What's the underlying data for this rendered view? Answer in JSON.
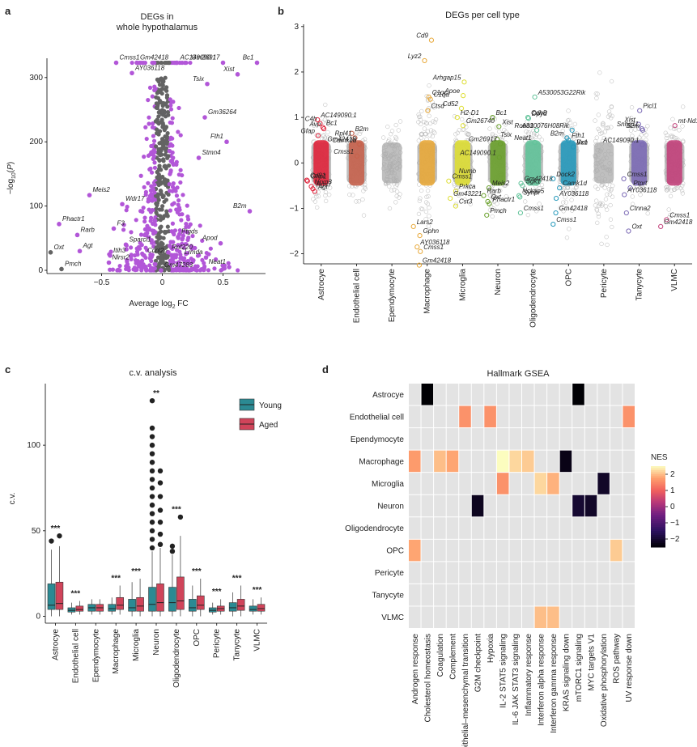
{
  "colors": {
    "volcano_sig": "#b256d8",
    "volcano_ns": "#636363",
    "background_cloud": "#b8b8b8",
    "young": "#2b8a93",
    "aged": "#d0445a",
    "tile_empty": "#e3e3e3"
  },
  "panel_a": {
    "letter": "a",
    "chart_data": {
      "type": "scatter",
      "title": "DEGs in\nwhole hypothalamus",
      "xlabel": "Average log2 FC",
      "ylabel": "-log10(P)",
      "xlim": [
        -0.95,
        0.85
      ],
      "ylim": [
        -5,
        330
      ],
      "xticks": [
        -0.5,
        0,
        0.5
      ],
      "yticks": [
        0,
        100,
        200,
        300
      ],
      "labeled_points": [
        {
          "label": "Gm42418",
          "x": -0.21,
          "y": 323
        },
        {
          "label": "AC149090.1",
          "x": 0.12,
          "y": 323
        },
        {
          "label": "Gm26917",
          "x": 0.5,
          "y": 323
        },
        {
          "label": "Bc1",
          "x": 0.78,
          "y": 323
        },
        {
          "label": "Cmss1",
          "x": -0.38,
          "y": 323
        },
        {
          "label": "Xist",
          "x": 0.62,
          "y": 305
        },
        {
          "label": "AY036118",
          "x": -0.25,
          "y": 307
        },
        {
          "label": "Tsix",
          "x": 0.37,
          "y": 290
        },
        {
          "label": "Gm36264",
          "x": 0.35,
          "y": 238
        },
        {
          "label": "Fth1",
          "x": 0.53,
          "y": 200
        },
        {
          "label": "Stmn4",
          "x": 0.3,
          "y": 175
        },
        {
          "label": "B2m",
          "x": 0.72,
          "y": 92
        },
        {
          "label": "Meis2",
          "x": -0.6,
          "y": 117
        },
        {
          "label": "Wdr17",
          "x": -0.33,
          "y": 103
        },
        {
          "label": "Phactr1",
          "x": -0.85,
          "y": 72
        },
        {
          "label": "Rarb",
          "x": -0.7,
          "y": 55
        },
        {
          "label": "F3",
          "x": -0.4,
          "y": 65
        },
        {
          "label": "Sparcl1",
          "x": -0.3,
          "y": 40
        },
        {
          "label": "Ptgds",
          "x": 0.13,
          "y": 52
        },
        {
          "label": "Apod",
          "x": 0.48,
          "y": 42
        },
        {
          "label": "Oxt",
          "x": -0.92,
          "y": 28
        },
        {
          "label": "Agt",
          "x": -0.68,
          "y": 30
        },
        {
          "label": "Itih3",
          "x": -0.43,
          "y": 23
        },
        {
          "label": "Ccnl2",
          "x": -0.15,
          "y": 23
        },
        {
          "label": "Rnf220",
          "x": 0.05,
          "y": 28
        },
        {
          "label": "Lrmda",
          "x": 0.36,
          "y": 20
        },
        {
          "label": "Nlrsr2",
          "x": -0.44,
          "y": 12
        },
        {
          "label": "Neat1",
          "x": 0.55,
          "y": 5
        },
        {
          "label": "Gm47283",
          "x": -0.01,
          "y": 0
        },
        {
          "label": "Pmch",
          "x": -0.83,
          "y": 2
        }
      ]
    }
  },
  "panel_b": {
    "letter": "b",
    "chart_data": {
      "type": "scatter",
      "title": "DEGs per cell type",
      "ylim": [
        -2.15,
        3.05
      ],
      "yticks": [
        -2,
        -1,
        0,
        1,
        2,
        3
      ],
      "categories": [
        "Astrocye",
        "Endothelial cell",
        "Ependymocyte",
        "Macrophage",
        "Microglia",
        "Neuron",
        "Oligodendrocyte",
        "OPC",
        "Pericyte",
        "Tanycyte",
        "VLMC"
      ],
      "category_colors": [
        "#e0233b",
        "#c7624c",
        "#9a9a9a",
        "#e8a93a",
        "#dede34",
        "#6aa02c",
        "#62c39a",
        "#2699bb",
        "#9a9a9a",
        "#7b6ab5",
        "#c2407a"
      ],
      "labeled_points": [
        {
          "cat": 0,
          "label": "AC149090.1",
          "y": 0.95
        },
        {
          "cat": 0,
          "label": "C4b",
          "y": 0.87
        },
        {
          "cat": 0,
          "label": "Bc1",
          "y": 0.78
        },
        {
          "cat": 0,
          "label": "Avp",
          "y": 0.75
        },
        {
          "cat": 0,
          "label": "Gfap",
          "y": 0.6
        },
        {
          "cat": 0,
          "label": "Cd81",
          "y": -0.38
        },
        {
          "cat": 0,
          "label": "Grip1",
          "y": -0.4
        },
        {
          "cat": 0,
          "label": "Nrxn3",
          "y": -0.52
        },
        {
          "cat": 0,
          "label": "Rgs7",
          "y": -0.57
        },
        {
          "cat": 0,
          "label": "Agt",
          "y": -0.63
        },
        {
          "cat": 1,
          "label": "B2m",
          "y": 0.65
        },
        {
          "cat": 1,
          "label": "Rpl41",
          "y": 0.55
        },
        {
          "cat": 1,
          "label": "Gm42418",
          "y": 0.42
        },
        {
          "cat": 1,
          "label": "Camk1d",
          "y": 0.4
        },
        {
          "cat": 1,
          "label": "Cmss1",
          "y": 0.15
        },
        {
          "cat": 3,
          "label": "Cd9",
          "y": 2.7
        },
        {
          "cat": 3,
          "label": "Lyz2",
          "y": 2.25
        },
        {
          "cat": 3,
          "label": "C1qa",
          "y": 1.4
        },
        {
          "cat": 3,
          "label": "C1qc",
          "y": 1.45
        },
        {
          "cat": 3,
          "label": "Ctsd",
          "y": 1.15
        },
        {
          "cat": 3,
          "label": "Lars2",
          "y": -1.4
        },
        {
          "cat": 3,
          "label": "Gphn",
          "y": -1.6
        },
        {
          "cat": 3,
          "label": "AY036118",
          "y": -1.85
        },
        {
          "cat": 3,
          "label": "Cmss1",
          "y": -1.95
        },
        {
          "cat": 3,
          "label": "Gm42418",
          "y": -2.25
        },
        {
          "cat": 4,
          "label": "Arhgap15",
          "y": 1.78
        },
        {
          "cat": 4,
          "label": "Apoe",
          "y": 1.48
        },
        {
          "cat": 4,
          "label": "Cd52",
          "y": 1.2
        },
        {
          "cat": 4,
          "label": "H2-D1",
          "y": 1.0
        },
        {
          "cat": 4,
          "label": "Gm26740",
          "y": 0.82
        },
        {
          "cat": 4,
          "label": "Numb",
          "y": -0.28
        },
        {
          "cat": 4,
          "label": "Cmss1",
          "y": -0.4
        },
        {
          "cat": 4,
          "label": "Prkca",
          "y": -0.62
        },
        {
          "cat": 4,
          "label": "Gm43221",
          "y": -0.78
        },
        {
          "cat": 4,
          "label": "Cst3",
          "y": -0.95
        },
        {
          "cat": 5,
          "label": "Bc1",
          "y": 1.0
        },
        {
          "cat": 5,
          "label": "Xist",
          "y": 0.8
        },
        {
          "cat": 5,
          "label": "Tsix",
          "y": 0.52
        },
        {
          "cat": 5,
          "label": "Gm26917",
          "y": 0.42
        },
        {
          "cat": 5,
          "label": "AC149090.1",
          "y": 0.12
        },
        {
          "cat": 5,
          "label": "Meis2",
          "y": -0.55
        },
        {
          "cat": 5,
          "label": "Rarb",
          "y": -0.72
        },
        {
          "cat": 5,
          "label": "Oxt",
          "y": -0.85
        },
        {
          "cat": 5,
          "label": "Phactr1",
          "y": -0.9
        },
        {
          "cat": 5,
          "label": "Pmch",
          "y": -1.15
        },
        {
          "cat": 6,
          "label": "A530053G22Rik",
          "y": 1.45
        },
        {
          "cat": 6,
          "label": "Dpyd",
          "y": 0.98
        },
        {
          "cat": 6,
          "label": "Cdh8",
          "y": 1.0
        },
        {
          "cat": 6,
          "label": "Robo1",
          "y": 0.72
        },
        {
          "cat": 6,
          "label": "Neat1",
          "y": 0.45
        },
        {
          "cat": 6,
          "label": "Gm42418",
          "y": -0.45
        },
        {
          "cat": 6,
          "label": "Sgk1",
          "y": -0.5
        },
        {
          "cat": 6,
          "label": "Synpr",
          "y": -0.75
        },
        {
          "cat": 6,
          "label": "Nckap5",
          "y": -0.72
        },
        {
          "cat": 6,
          "label": "Cmss1",
          "y": -1.1
        },
        {
          "cat": 7,
          "label": "A330076H08Rik",
          "y": 0.72
        },
        {
          "cat": 7,
          "label": "Fth1",
          "y": 0.5
        },
        {
          "cat": 7,
          "label": "B2m",
          "y": 0.55
        },
        {
          "cat": 7,
          "label": "Vxn",
          "y": 0.35
        },
        {
          "cat": 7,
          "label": "Bc1",
          "y": 0.35
        },
        {
          "cat": 7,
          "label": "Dock2",
          "y": -0.35
        },
        {
          "cat": 7,
          "label": "Camk1d",
          "y": -0.55
        },
        {
          "cat": 7,
          "label": "AY036118",
          "y": -0.78
        },
        {
          "cat": 7,
          "label": "Gm42418",
          "y": -1.1
        },
        {
          "cat": 7,
          "label": "Cmss1",
          "y": -1.35
        },
        {
          "cat": 9,
          "label": "Picl1",
          "y": 1.15
        },
        {
          "cat": 9,
          "label": "Xist",
          "y": 0.85
        },
        {
          "cat": 9,
          "label": "Snhg11",
          "y": 0.75
        },
        {
          "cat": 9,
          "label": "B2m",
          "y": 0.72
        },
        {
          "cat": 9,
          "label": "AC149090.1",
          "y": 0.4
        },
        {
          "cat": 9,
          "label": "Cmss1",
          "y": -0.35
        },
        {
          "cat": 9,
          "label": "Ptprt",
          "y": -0.55
        },
        {
          "cat": 9,
          "label": "AY036118",
          "y": -0.7
        },
        {
          "cat": 9,
          "label": "Ctnna2",
          "y": -1.1
        },
        {
          "cat": 9,
          "label": "Oxt",
          "y": -1.5
        },
        {
          "cat": 10,
          "label": "mt-Nd1",
          "y": 0.82
        },
        {
          "cat": 10,
          "label": "Cmss1",
          "y": -1.25
        },
        {
          "cat": 10,
          "label": "Gm42418",
          "y": -1.4
        }
      ]
    }
  },
  "panel_c": {
    "letter": "c",
    "chart_data": {
      "type": "box",
      "title": "c.v. analysis",
      "ylabel": "c.v.",
      "ylim": [
        -4,
        136
      ],
      "yticks": [
        0,
        50,
        100
      ],
      "categories": [
        "Astrocye",
        "Endothelial cell",
        "Ependymocyte",
        "Macrophage",
        "Microglia",
        "Neuron",
        "Oligodendrocyte",
        "OPC",
        "Pericyte",
        "Tanycyte",
        "VLMC"
      ],
      "legend": [
        "Young",
        "Aged"
      ],
      "legend_position": "right",
      "significance": [
        "***",
        "***",
        "",
        "***",
        "***",
        "**",
        "***",
        "***",
        "***",
        "***",
        "***"
      ],
      "young": [
        {
          "q1": 4,
          "median": 6.5,
          "q3": 19,
          "wlo": 0,
          "whi": 39,
          "outliers": [
            44
          ]
        },
        {
          "q1": 2.5,
          "median": 3.5,
          "q3": 5,
          "wlo": 1,
          "whi": 8,
          "outliers": []
        },
        {
          "q1": 3,
          "median": 5,
          "q3": 7,
          "wlo": 1,
          "whi": 10,
          "outliers": []
        },
        {
          "q1": 3,
          "median": 4.5,
          "q3": 7,
          "wlo": 1,
          "whi": 11,
          "outliers": []
        },
        {
          "q1": 3,
          "median": 5,
          "q3": 10,
          "wlo": 0,
          "whi": 20,
          "outliers": []
        },
        {
          "q1": 3,
          "median": 7,
          "q3": 17,
          "wlo": 0,
          "whi": 38,
          "outliers": [
            40,
            45,
            50,
            55,
            60,
            65,
            70,
            75,
            80,
            85,
            90,
            95,
            100,
            105,
            110,
            126
          ]
        },
        {
          "q1": 3,
          "median": 8,
          "q3": 17,
          "wlo": 0,
          "whi": 36,
          "outliers": [
            38,
            41
          ]
        },
        {
          "q1": 3,
          "median": 5,
          "q3": 10,
          "wlo": 0,
          "whi": 18,
          "outliers": []
        },
        {
          "q1": 2.5,
          "median": 3.5,
          "q3": 5,
          "wlo": 1,
          "whi": 8,
          "outliers": []
        },
        {
          "q1": 3,
          "median": 5,
          "q3": 8,
          "wlo": 0,
          "whi": 14,
          "outliers": []
        },
        {
          "q1": 3,
          "median": 4,
          "q3": 6,
          "wlo": 1,
          "whi": 10,
          "outliers": []
        }
      ],
      "aged": [
        {
          "q1": 4,
          "median": 7.5,
          "q3": 20,
          "wlo": 0,
          "whi": 41,
          "outliers": [
            47
          ]
        },
        {
          "q1": 3,
          "median": 4,
          "q3": 6,
          "wlo": 1,
          "whi": 9,
          "outliers": []
        },
        {
          "q1": 3,
          "median": 5,
          "q3": 7,
          "wlo": 1,
          "whi": 10,
          "outliers": []
        },
        {
          "q1": 4,
          "median": 6.5,
          "q3": 11,
          "wlo": 1,
          "whi": 18,
          "outliers": []
        },
        {
          "q1": 3,
          "median": 6,
          "q3": 11,
          "wlo": 0,
          "whi": 22,
          "outliers": []
        },
        {
          "q1": 3,
          "median": 8,
          "q3": 19,
          "wlo": 0,
          "whi": 40,
          "outliers": [
            42,
            48,
            55,
            62,
            70,
            78,
            85
          ]
        },
        {
          "q1": 4,
          "median": 9,
          "q3": 23,
          "wlo": 0,
          "whi": 47,
          "outliers": [
            58
          ]
        },
        {
          "q1": 4,
          "median": 6.5,
          "q3": 12,
          "wlo": 0,
          "whi": 22,
          "outliers": []
        },
        {
          "q1": 3,
          "median": 4.5,
          "q3": 6,
          "wlo": 1,
          "whi": 10,
          "outliers": []
        },
        {
          "q1": 3.5,
          "median": 6,
          "q3": 10,
          "wlo": 0,
          "whi": 18,
          "outliers": []
        },
        {
          "q1": 3,
          "median": 4.5,
          "q3": 7,
          "wlo": 1,
          "whi": 11,
          "outliers": []
        }
      ]
    }
  },
  "panel_d": {
    "letter": "d",
    "chart_data": {
      "type": "heatmap",
      "title": "Hallmark GSEA",
      "rows": [
        "Astrocye",
        "Endothelial cell",
        "Ependymocyte",
        "Macrophage",
        "Microglia",
        "Neuron",
        "Oligodendrocyte",
        "OPC",
        "Pericyte",
        "Tanycyte",
        "VLMC"
      ],
      "columns": [
        "Androgen response",
        "Cholesterol homeostasis",
        "Coagulation",
        "Complement",
        "Epithelial–mesenchymal transition",
        "G2M checkpoint",
        "Hypoxia",
        "IL-2 STAT5 signaling",
        "IL-6 JAK STAT3 signaling",
        "Inflammatory response",
        "Interferon alpha response",
        "Interferon gamma response",
        "KRAS signaling down",
        "mTORC1 signaling",
        "MYC targets V1",
        "Oxidative phosphorylation",
        "ROS pathway",
        "UV response down"
      ],
      "legend_title": "NES",
      "color_range": [
        -2.5,
        2.5
      ],
      "legend_ticks": [
        2,
        1,
        0,
        -1,
        -2
      ],
      "cells": [
        {
          "row": 0,
          "col": 1,
          "nes": -2.5
        },
        {
          "row": 0,
          "col": 13,
          "nes": -2.5
        },
        {
          "row": 1,
          "col": 4,
          "nes": 1.6
        },
        {
          "row": 1,
          "col": 6,
          "nes": 1.6
        },
        {
          "row": 1,
          "col": 17,
          "nes": 1.6
        },
        {
          "row": 3,
          "col": 0,
          "nes": 1.7
        },
        {
          "row": 3,
          "col": 2,
          "nes": 2.0
        },
        {
          "row": 3,
          "col": 3,
          "nes": 1.8
        },
        {
          "row": 3,
          "col": 7,
          "nes": 2.5
        },
        {
          "row": 3,
          "col": 8,
          "nes": 2.2
        },
        {
          "row": 3,
          "col": 9,
          "nes": 2.1
        },
        {
          "row": 3,
          "col": 12,
          "nes": -2.3
        },
        {
          "row": 4,
          "col": 7,
          "nes": 1.6
        },
        {
          "row": 4,
          "col": 10,
          "nes": 2.2
        },
        {
          "row": 4,
          "col": 11,
          "nes": 1.9
        },
        {
          "row": 4,
          "col": 15,
          "nes": -2.1
        },
        {
          "row": 5,
          "col": 5,
          "nes": -2.2
        },
        {
          "row": 5,
          "col": 13,
          "nes": -2.0
        },
        {
          "row": 5,
          "col": 14,
          "nes": -2.1
        },
        {
          "row": 7,
          "col": 0,
          "nes": 1.8
        },
        {
          "row": 7,
          "col": 16,
          "nes": 2.1
        },
        {
          "row": 10,
          "col": 10,
          "nes": 2.0
        },
        {
          "row": 10,
          "col": 11,
          "nes": 2.0
        }
      ]
    }
  }
}
